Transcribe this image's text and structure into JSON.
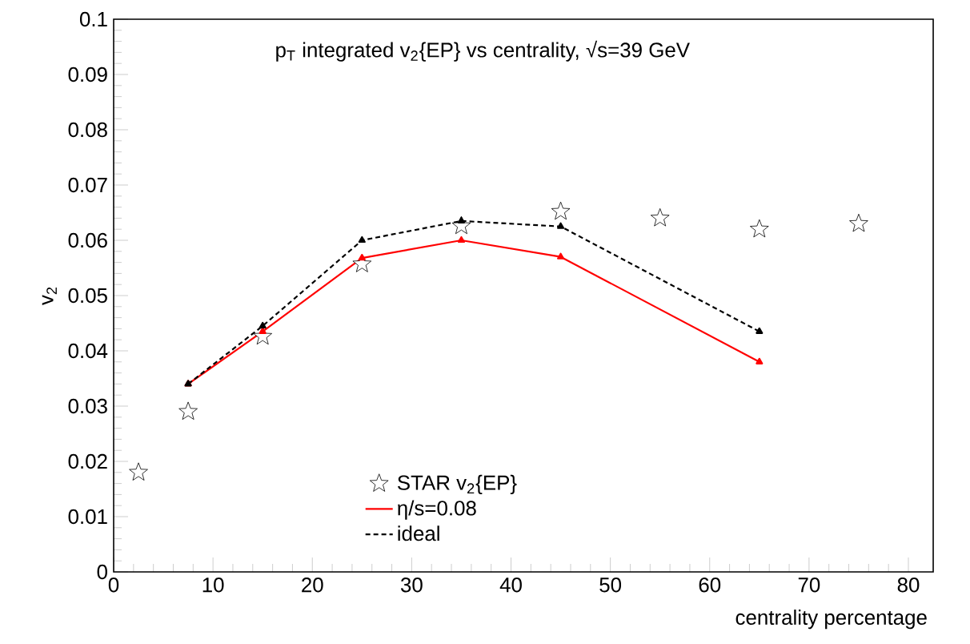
{
  "chart_data": {
    "type": "line",
    "title": "p$_{T}$ integrated v$_{2}${EP} vs centrality, √s=39 GeV",
    "xlabel": "centrality percentage",
    "ylabel": "v$_{2}$",
    "xlim": [
      0,
      82.5
    ],
    "ylim": [
      0,
      0.1
    ],
    "xticks": [
      0,
      10,
      20,
      30,
      40,
      50,
      60,
      70,
      80
    ],
    "yticks": [
      0,
      0.01,
      0.02,
      0.03,
      0.04,
      0.05,
      0.06,
      0.07,
      0.08,
      0.09,
      0.1
    ],
    "legend": "bottom",
    "grid": false,
    "series": [
      {
        "name": "STAR v$_{2}${EP}",
        "type": "scatter",
        "marker": "star",
        "color": "#000000",
        "x": [
          2.5,
          7.5,
          15,
          25,
          35,
          45,
          55,
          65,
          75
        ],
        "values": [
          0.018,
          0.029,
          0.0426,
          0.0557,
          0.0626,
          0.0652,
          0.064,
          0.062,
          0.063
        ]
      },
      {
        "name": "η/s=0.08",
        "marker": "triangle",
        "line_style": "solid",
        "color": "#ff0000",
        "x": [
          7.5,
          15,
          25,
          35,
          45,
          65
        ],
        "values": [
          0.034,
          0.0435,
          0.0568,
          0.06,
          0.057,
          0.038
        ]
      },
      {
        "name": "ideal",
        "marker": "triangle",
        "line_style": "dashed",
        "color": "#000000",
        "x": [
          7.5,
          15,
          25,
          35,
          45,
          65
        ],
        "values": [
          0.034,
          0.0445,
          0.06,
          0.0635,
          0.0625,
          0.0435
        ]
      }
    ]
  }
}
